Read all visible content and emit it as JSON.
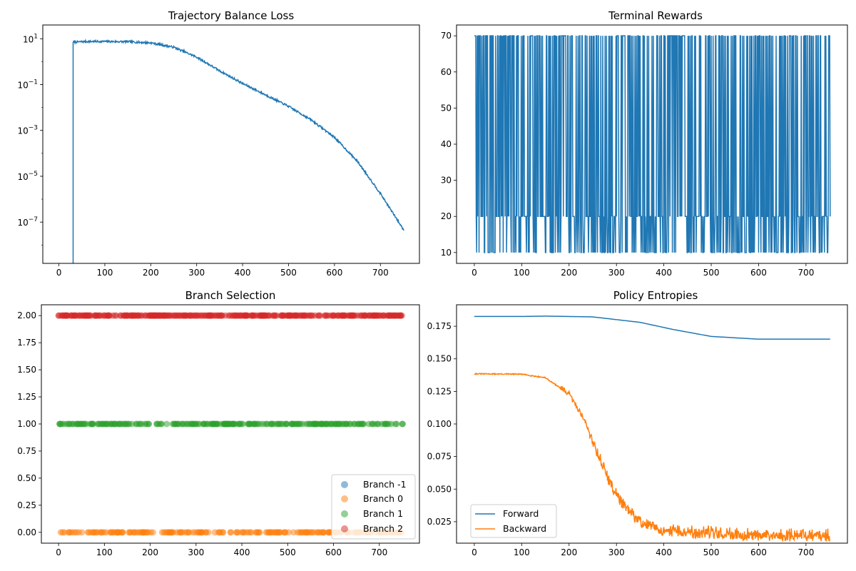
{
  "chart_data": [
    {
      "id": "loss",
      "type": "line",
      "title": "Trajectory Balance Loss",
      "xlabel": "",
      "ylabel": "",
      "yscale": "log",
      "xlim": [
        -35,
        785
      ],
      "ylim_log10": [
        -8.8,
        1.6
      ],
      "xticks": [
        0,
        100,
        200,
        300,
        400,
        500,
        600,
        700
      ],
      "yticks": [
        {
          "pow": 1,
          "base": "10",
          "exp": "1"
        },
        {
          "pow": -1,
          "base": "10",
          "exp": "−1"
        },
        {
          "pow": -3,
          "base": "10",
          "exp": "−3"
        },
        {
          "pow": -5,
          "base": "10",
          "exp": "−5"
        },
        {
          "pow": -7,
          "base": "10",
          "exp": "−7"
        }
      ],
      "grid": false,
      "color": "#1f77b4",
      "series_points_log10": [
        [
          31,
          -8.8
        ],
        [
          31,
          0.85
        ],
        [
          60,
          0.88
        ],
        [
          100,
          0.88
        ],
        [
          150,
          0.87
        ],
        [
          200,
          0.82
        ],
        [
          250,
          0.63
        ],
        [
          300,
          0.2
        ],
        [
          350,
          -0.4
        ],
        [
          400,
          -0.95
        ],
        [
          450,
          -1.45
        ],
        [
          500,
          -1.95
        ],
        [
          550,
          -2.55
        ],
        [
          600,
          -3.3
        ],
        [
          650,
          -4.35
        ],
        [
          700,
          -5.75
        ],
        [
          751,
          -7.35
        ]
      ]
    },
    {
      "id": "rewards",
      "type": "line",
      "title": "Terminal Rewards",
      "xlabel": "",
      "ylabel": "",
      "xlim": [
        -37.5,
        787.5
      ],
      "ylim": [
        7,
        73
      ],
      "xticks": [
        0,
        100,
        200,
        300,
        400,
        500,
        600,
        700
      ],
      "yticks": [
        10,
        20,
        30,
        40,
        50,
        60,
        70
      ],
      "reward_levels": [
        10,
        20,
        70
      ],
      "x_range": [
        0,
        751
      ],
      "grid": false,
      "color": "#1f77b4"
    },
    {
      "id": "branch",
      "type": "scatter",
      "title": "Branch Selection",
      "xlabel": "",
      "ylabel": "",
      "xlim": [
        -37.5,
        787.5
      ],
      "ylim": [
        -0.1,
        2.1
      ],
      "xticks": [
        0,
        100,
        200,
        300,
        400,
        500,
        600,
        700
      ],
      "yticks": [
        "0.00",
        "0.25",
        "0.50",
        "0.75",
        "1.00",
        "1.25",
        "1.50",
        "1.75",
        "2.00"
      ],
      "series": [
        {
          "name": "Branch -1",
          "color": "#1f77b4",
          "y": -1
        },
        {
          "name": "Branch 0",
          "color": "#ff7f0e",
          "y": 0
        },
        {
          "name": "Branch 1",
          "color": "#2ca02c",
          "y": 1
        },
        {
          "name": "Branch 2",
          "color": "#d62728",
          "y": 2
        }
      ],
      "x_range": [
        0,
        751
      ],
      "legend": "lower-right",
      "grid": false
    },
    {
      "id": "entropy",
      "type": "line",
      "title": "Policy Entropies",
      "xlabel": "",
      "ylabel": "",
      "xlim": [
        -37.5,
        787.5
      ],
      "ylim": [
        0.0085,
        0.1915
      ],
      "xticks": [
        0,
        100,
        200,
        300,
        400,
        500,
        600,
        700
      ],
      "yticks": [
        "0.025",
        "0.050",
        "0.075",
        "0.100",
        "0.125",
        "0.150",
        "0.175"
      ],
      "series": [
        {
          "name": "Forward",
          "color": "#1f77b4",
          "points": [
            [
              0,
              0.1825
            ],
            [
              100,
              0.1825
            ],
            [
              150,
              0.1828
            ],
            [
              250,
              0.1822
            ],
            [
              350,
              0.178
            ],
            [
              420,
              0.1725
            ],
            [
              500,
              0.1672
            ],
            [
              600,
              0.1651
            ],
            [
              751,
              0.1651
            ]
          ]
        },
        {
          "name": "Backward",
          "color": "#ff7f0e",
          "points": [
            [
              0,
              0.1385
            ],
            [
              100,
              0.1382
            ],
            [
              150,
              0.1355
            ],
            [
              200,
              0.123
            ],
            [
              230,
              0.105
            ],
            [
              260,
              0.078
            ],
            [
              290,
              0.052
            ],
            [
              320,
              0.035
            ],
            [
              350,
              0.025
            ],
            [
              400,
              0.0175
            ],
            [
              450,
              0.016
            ],
            [
              500,
              0.0155
            ],
            [
              600,
              0.0135
            ],
            [
              751,
              0.0132
            ]
          ]
        }
      ],
      "legend": "lower-left",
      "grid": false
    }
  ]
}
